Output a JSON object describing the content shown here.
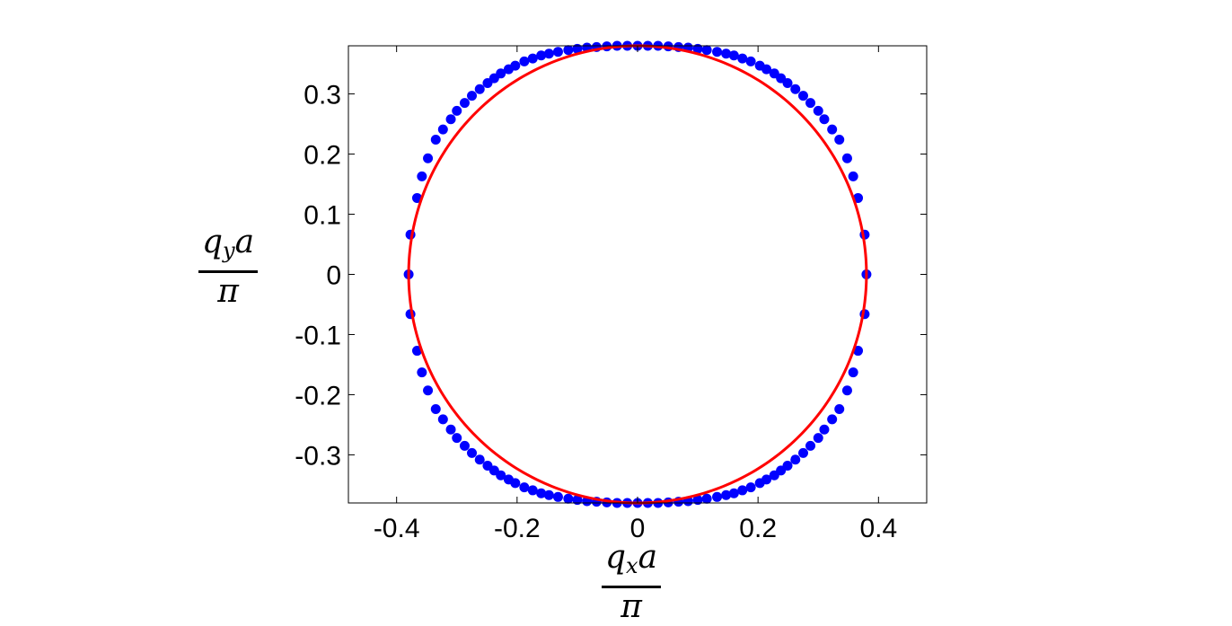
{
  "chart_data": {
    "type": "scatter",
    "xlim": [
      -0.48,
      0.48
    ],
    "ylim": [
      -0.38,
      0.38
    ],
    "xticks": [
      -0.4,
      -0.2,
      0,
      0.2,
      0.4
    ],
    "xtick_labels": [
      "-0.4",
      "-0.2",
      "0",
      "0.2",
      "0.4"
    ],
    "yticks": [
      -0.3,
      -0.2,
      -0.1,
      0,
      0.1,
      0.2,
      0.3
    ],
    "ytick_labels": [
      "-0.3",
      "-0.2",
      "-0.1",
      "0",
      "0.1",
      "0.2",
      "0.3"
    ],
    "xlabel": {
      "numerator_base": "q",
      "numerator_sub": "x",
      "numerator_tail": "a",
      "denominator": "π"
    },
    "ylabel": {
      "numerator_base": "q",
      "numerator_sub": "y",
      "numerator_tail": "a",
      "denominator": "π"
    },
    "grid": false,
    "series": [
      {
        "kind": "markers",
        "color": "#0000ff",
        "x": [
          -0.38,
          -0.377,
          -0.366,
          -0.358,
          -0.348,
          -0.335,
          -0.323,
          -0.31,
          -0.3,
          -0.287,
          -0.275,
          -0.262,
          -0.249,
          -0.238,
          -0.227,
          -0.214,
          -0.203,
          -0.188,
          -0.174,
          -0.16,
          -0.147,
          -0.132,
          -0.115,
          -0.1,
          -0.084,
          -0.068,
          -0.051,
          -0.034,
          -0.017,
          0.0,
          0.017,
          0.034,
          0.051,
          0.068,
          0.084,
          0.1,
          0.115,
          0.132,
          0.147,
          0.16,
          0.174,
          0.188,
          0.203,
          0.214,
          0.227,
          0.238,
          0.249,
          0.262,
          0.275,
          0.287,
          0.3,
          0.31,
          0.323,
          0.335,
          0.348,
          0.358,
          0.366,
          0.377,
          0.38,
          0.377,
          0.366,
          0.358,
          0.348,
          0.335,
          0.323,
          0.31,
          0.3,
          0.287,
          0.275,
          0.262,
          0.249,
          0.238,
          0.227,
          0.214,
          0.203,
          0.188,
          0.174,
          0.16,
          0.147,
          0.132,
          0.115,
          0.1,
          0.084,
          0.068,
          0.051,
          0.034,
          0.017,
          0.0,
          -0.017,
          -0.034,
          -0.051,
          -0.068,
          -0.084,
          -0.1,
          -0.115,
          -0.132,
          -0.147,
          -0.16,
          -0.174,
          -0.188,
          -0.203,
          -0.214,
          -0.227,
          -0.238,
          -0.249,
          -0.262,
          -0.275,
          -0.287,
          -0.3,
          -0.31,
          -0.323,
          -0.335,
          -0.348,
          -0.358,
          -0.366,
          -0.377
        ],
        "y": [
          0.0,
          0.066,
          0.127,
          0.163,
          0.193,
          0.224,
          0.241,
          0.258,
          0.272,
          0.285,
          0.297,
          0.308,
          0.318,
          0.326,
          0.334,
          0.341,
          0.347,
          0.354,
          0.359,
          0.364,
          0.367,
          0.37,
          0.373,
          0.375,
          0.377,
          0.378,
          0.379,
          0.38,
          0.38,
          0.38,
          0.38,
          0.38,
          0.379,
          0.378,
          0.377,
          0.375,
          0.373,
          0.37,
          0.367,
          0.364,
          0.359,
          0.354,
          0.347,
          0.341,
          0.334,
          0.326,
          0.318,
          0.308,
          0.297,
          0.285,
          0.272,
          0.258,
          0.241,
          0.224,
          0.193,
          0.163,
          0.127,
          0.066,
          0.0,
          -0.066,
          -0.127,
          -0.163,
          -0.193,
          -0.224,
          -0.241,
          -0.258,
          -0.272,
          -0.285,
          -0.297,
          -0.308,
          -0.318,
          -0.326,
          -0.334,
          -0.341,
          -0.347,
          -0.354,
          -0.359,
          -0.364,
          -0.367,
          -0.37,
          -0.373,
          -0.375,
          -0.377,
          -0.378,
          -0.379,
          -0.38,
          -0.38,
          -0.38,
          -0.38,
          -0.38,
          -0.379,
          -0.378,
          -0.377,
          -0.375,
          -0.373,
          -0.37,
          -0.367,
          -0.364,
          -0.359,
          -0.354,
          -0.347,
          -0.341,
          -0.334,
          -0.326,
          -0.318,
          -0.308,
          -0.297,
          -0.285,
          -0.272,
          -0.258,
          -0.241,
          -0.224,
          -0.193,
          -0.163,
          -0.127,
          -0.066
        ]
      },
      {
        "kind": "line",
        "shape": "circle",
        "color": "#ff0000",
        "center": [
          0,
          0
        ],
        "radius": 0.38
      }
    ]
  }
}
